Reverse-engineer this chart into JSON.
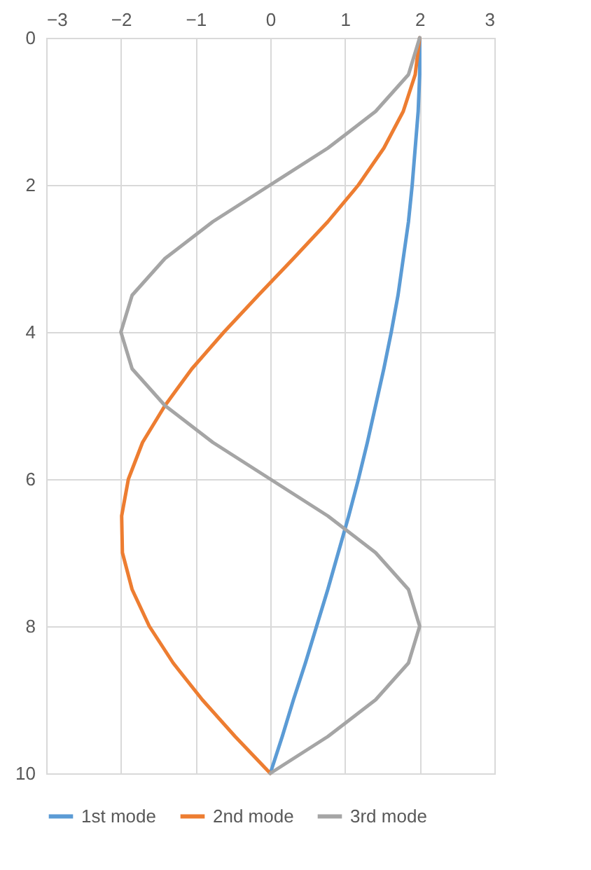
{
  "chart_data": {
    "type": "line",
    "orientation": "horizontal",
    "x": [
      0,
      0.5,
      1,
      1.5,
      2,
      2.5,
      3,
      3.5,
      4,
      4.5,
      5,
      5.5,
      6,
      6.5,
      7,
      7.5,
      8,
      8.5,
      9,
      9.5,
      10
    ],
    "series": [
      {
        "name": "1st mode",
        "color": "#5b9bd5",
        "values": [
          2,
          2,
          1.98,
          1.94,
          1.9,
          1.85,
          1.78,
          1.71,
          1.62,
          1.52,
          1.41,
          1.3,
          1.18,
          1.05,
          0.91,
          0.77,
          0.62,
          0.47,
          0.31,
          0.16,
          0
        ]
      },
      {
        "name": "2nd mode",
        "color": "#ed7d31",
        "values": [
          2,
          1.94,
          1.78,
          1.52,
          1.18,
          0.77,
          0.31,
          -0.16,
          -0.62,
          -1.05,
          -1.41,
          -1.71,
          -1.9,
          -1.99,
          -1.98,
          -1.85,
          -1.62,
          -1.3,
          -0.91,
          -0.47,
          0
        ]
      },
      {
        "name": "3rd mode",
        "color": "#a5a5a5",
        "values": [
          2,
          1.85,
          1.41,
          0.77,
          0,
          -0.77,
          -1.41,
          -1.85,
          -2,
          -1.85,
          -1.41,
          -0.77,
          0,
          0.77,
          1.41,
          1.85,
          2,
          1.85,
          1.41,
          0.77,
          0
        ]
      }
    ],
    "xlim": [
      -3,
      3
    ],
    "xticks": [
      -3,
      -2,
      -1,
      0,
      1,
      2,
      3
    ],
    "ylim": [
      10,
      0
    ],
    "yticks": [
      0,
      2,
      4,
      6,
      8,
      10
    ],
    "grid": true,
    "legend": "bottom",
    "marker": "none",
    "line_style": "solid"
  }
}
